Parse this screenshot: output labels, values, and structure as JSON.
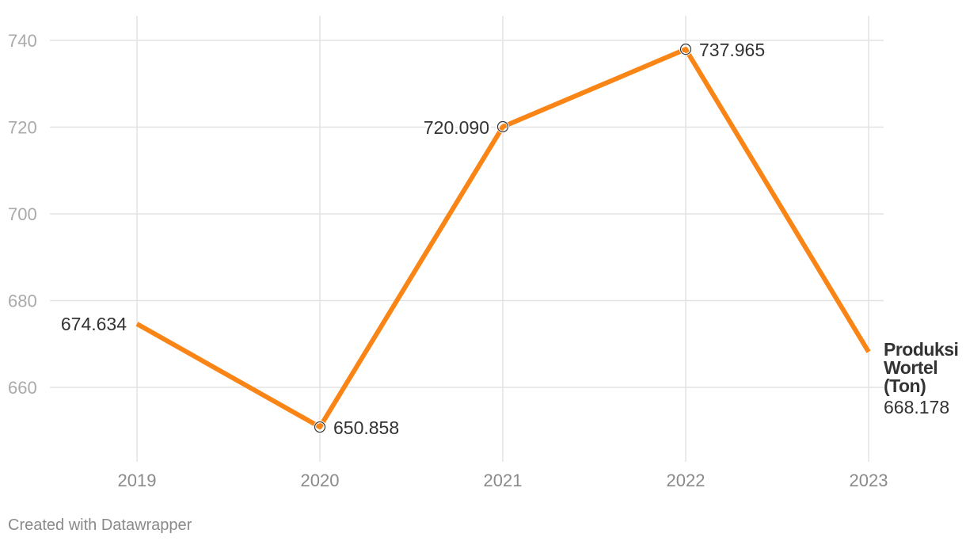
{
  "chart_data": {
    "type": "line",
    "title": "",
    "xlabel": "",
    "ylabel": "",
    "x": [
      "2019",
      "2020",
      "2021",
      "2022",
      "2023"
    ],
    "y_ticks": [
      660,
      680,
      700,
      720,
      740
    ],
    "ylim": [
      645,
      745
    ],
    "grid": true,
    "series": [
      {
        "name": "Produksi Wortel (Ton)",
        "values": [
          674.634,
          650.858,
          720.09,
          737.965,
          668.178
        ],
        "labels": [
          "674.634",
          "650.858",
          "720.090",
          "737.965",
          "668.178"
        ],
        "color": "#fa8517"
      }
    ]
  },
  "footer": {
    "credit": "Created with Datawrapper"
  }
}
